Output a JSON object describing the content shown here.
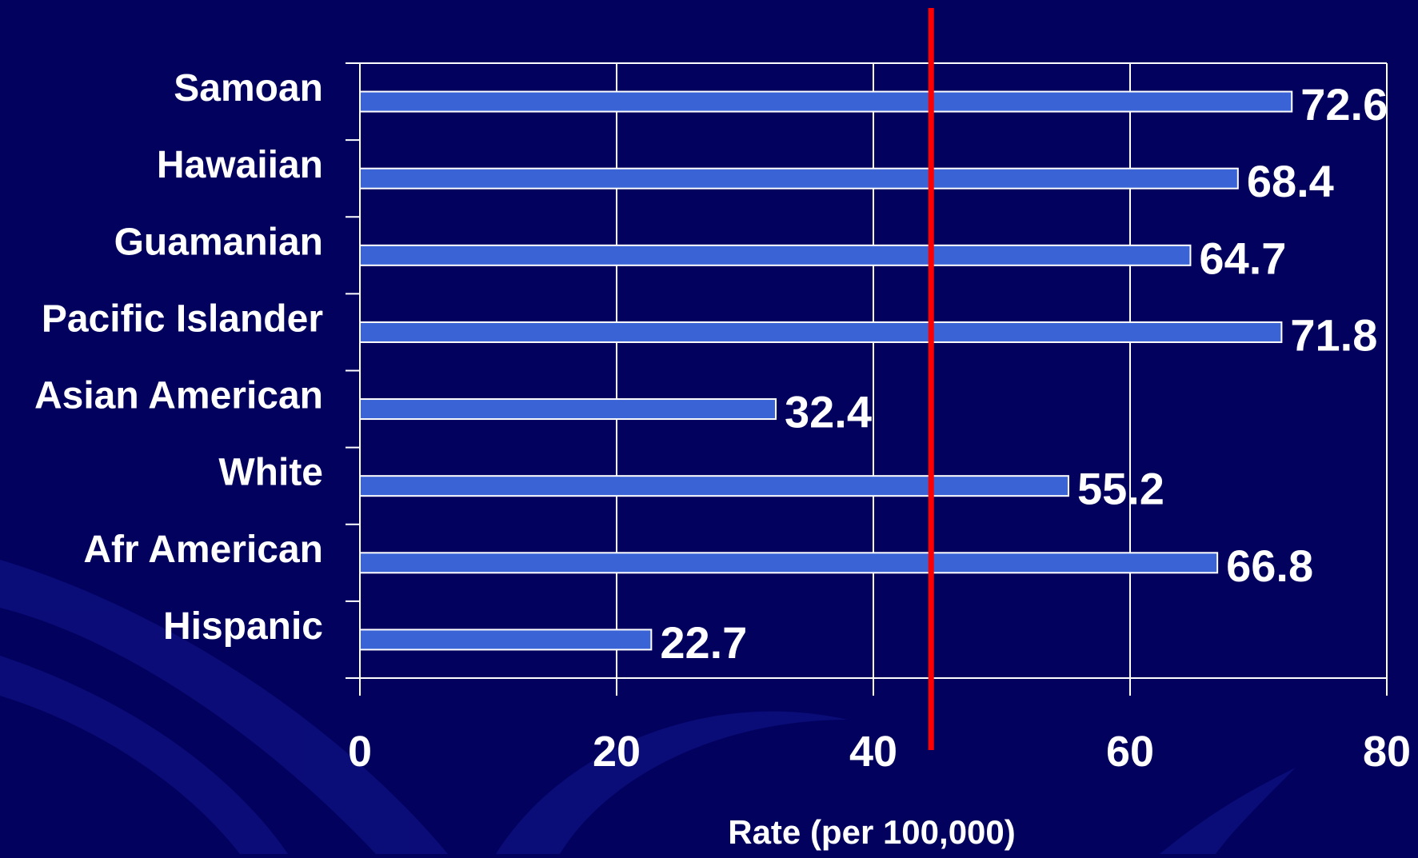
{
  "colors": {
    "background": "#03015e",
    "bar_fill": "#3a63d6",
    "bar_stroke": "#ffffff",
    "grid": "#ffffff",
    "reference_line": "#ff0000",
    "text": "#ffffff"
  },
  "chart_data": {
    "type": "bar",
    "orientation": "horizontal",
    "categories": [
      "Samoan",
      "Hawaiian",
      "Guamanian",
      "Pacific Islander",
      "Asian American",
      "White",
      "Afr American",
      "Hispanic"
    ],
    "values": [
      72.6,
      68.4,
      64.7,
      71.8,
      32.4,
      55.2,
      66.8,
      22.7
    ],
    "value_labels": [
      "72.6",
      "68.4",
      "64.7",
      "71.8",
      "32.4",
      "55.2",
      "66.8",
      "22.7"
    ],
    "xlabel": "Rate (per 100,000)",
    "ylabel": "",
    "xlim": [
      0,
      80
    ],
    "x_ticks": [
      0,
      20,
      40,
      60,
      80
    ],
    "x_tick_labels": [
      "0",
      "20",
      "40",
      "60",
      "80"
    ],
    "reference_line_x": 44.5,
    "grid": "vertical",
    "legend": "none"
  }
}
